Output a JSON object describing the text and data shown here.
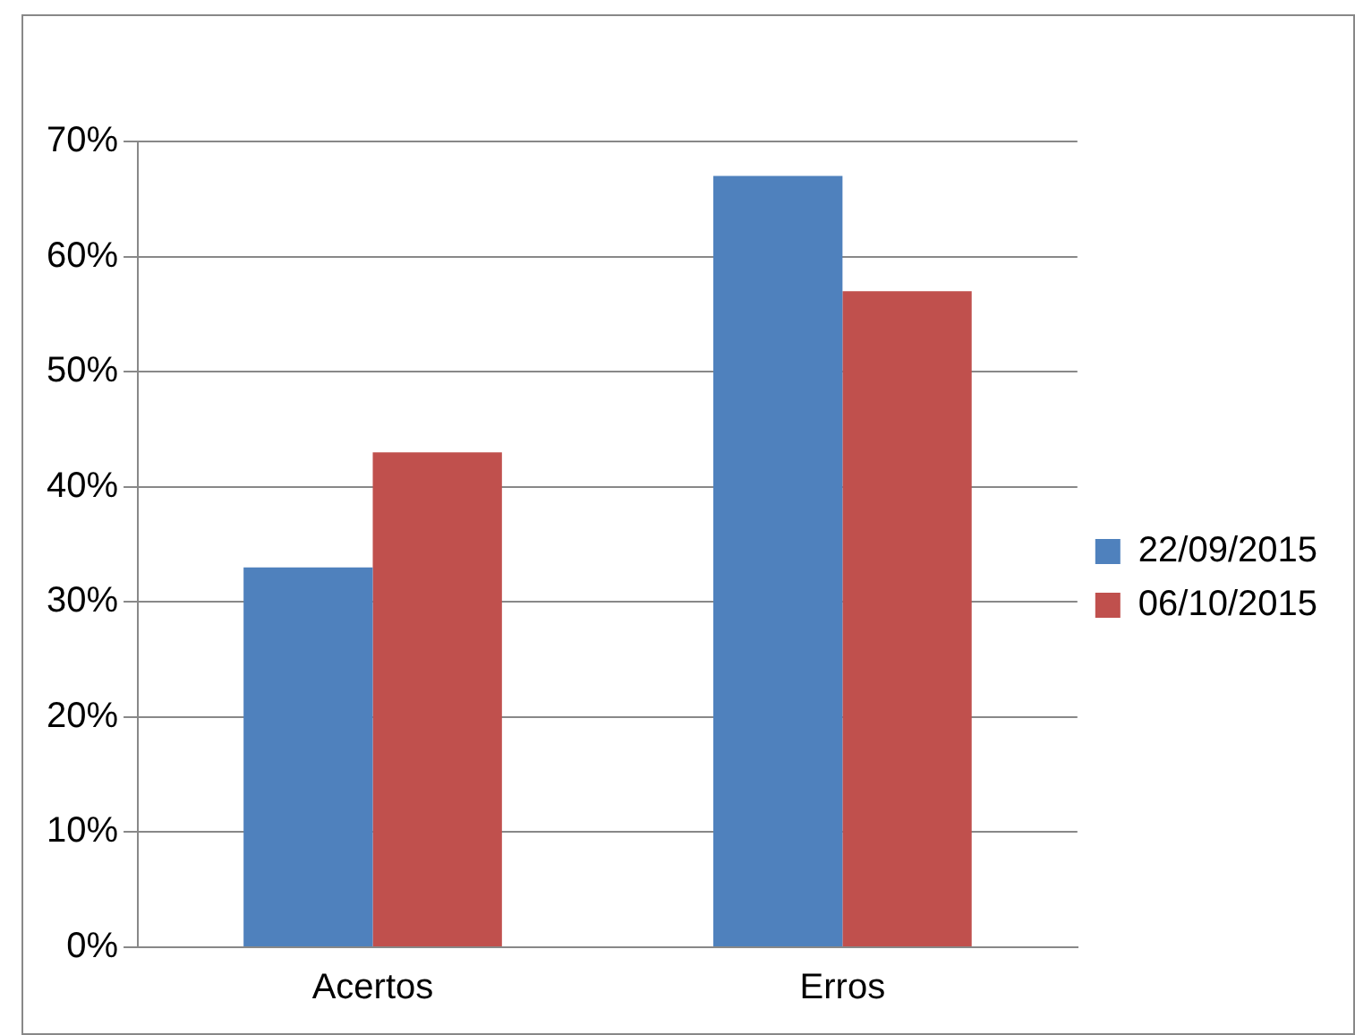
{
  "chart_data": {
    "type": "bar",
    "categories": [
      "Acertos",
      "Erros"
    ],
    "series": [
      {
        "name": "22/09/2015",
        "color": "#4f81bd",
        "values": [
          33,
          67
        ]
      },
      {
        "name": "06/10/2015",
        "color": "#c0504d",
        "values": [
          43,
          57
        ]
      }
    ],
    "ylim": [
      0,
      70
    ],
    "yticks": [
      {
        "value": 0,
        "label": "0%"
      },
      {
        "value": 10,
        "label": "10%"
      },
      {
        "value": 20,
        "label": "20%"
      },
      {
        "value": 30,
        "label": "30%"
      },
      {
        "value": 40,
        "label": "40%"
      },
      {
        "value": 50,
        "label": "50%"
      },
      {
        "value": 60,
        "label": "60%"
      },
      {
        "value": 70,
        "label": "70%"
      }
    ],
    "grid": "y",
    "legend": "right"
  }
}
